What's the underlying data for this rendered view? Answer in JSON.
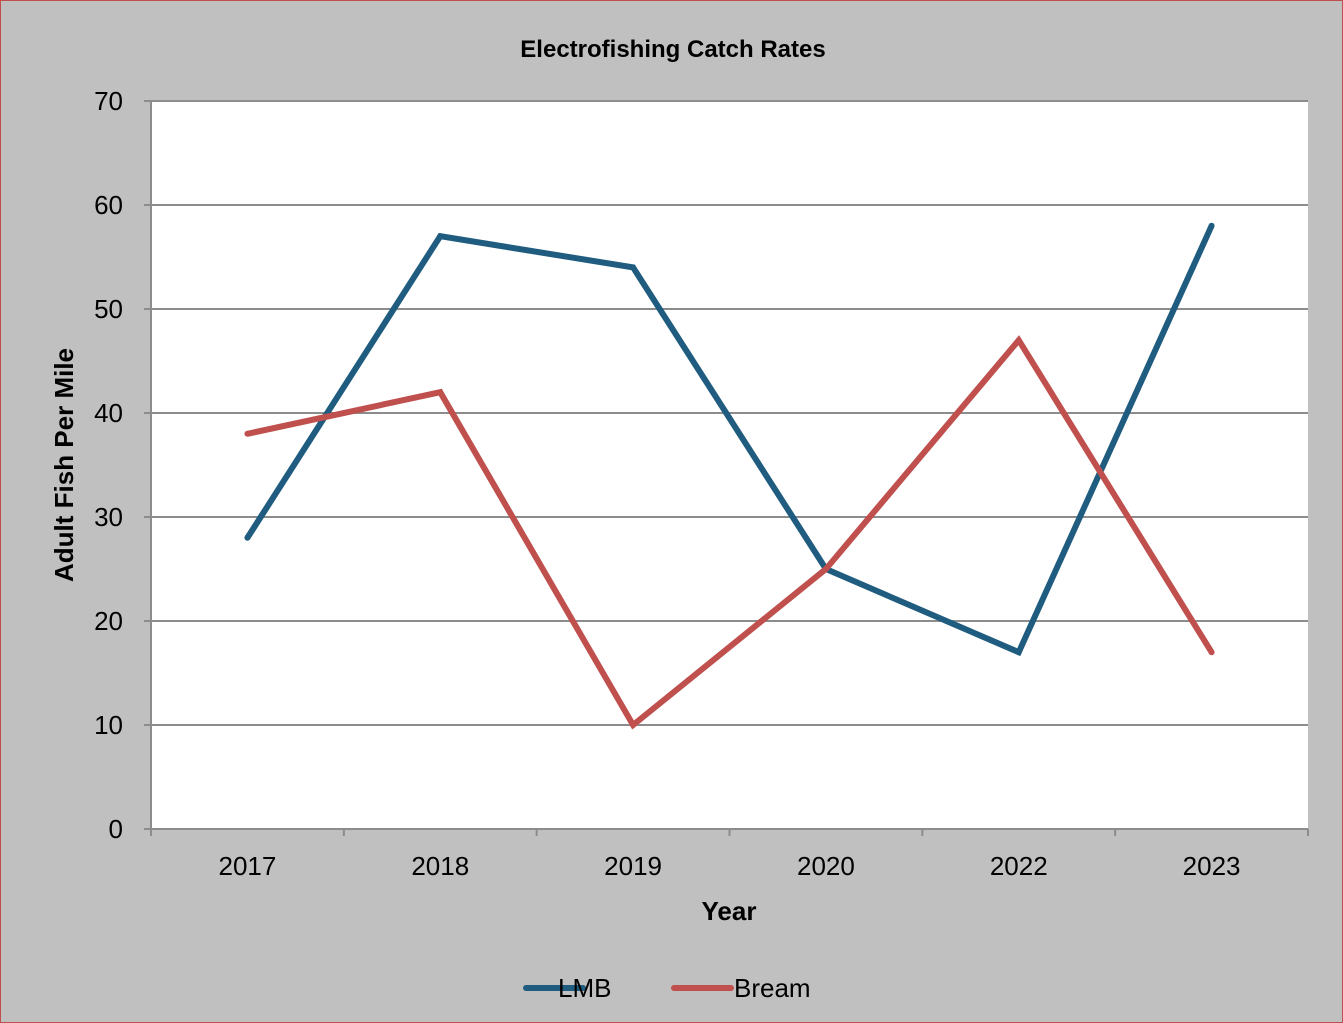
{
  "chart_data": {
    "type": "line",
    "title": "Electrofishing Catch Rates",
    "xlabel": "Year",
    "ylabel": "Adult Fish Per Mile",
    "categories": [
      "2017",
      "2018",
      "2019",
      "2020",
      "2022",
      "2023"
    ],
    "ylim": [
      0,
      70
    ],
    "yticks": [
      0,
      10,
      20,
      30,
      40,
      50,
      60,
      70
    ],
    "grid": "horizontal",
    "legend_position": "bottom",
    "series": [
      {
        "name": "LMB",
        "color": "#1f5c7f",
        "values": [
          28,
          57,
          54,
          25,
          17,
          58
        ]
      },
      {
        "name": "Bream",
        "color": "#c0504d",
        "values": [
          38,
          42,
          10,
          25,
          47,
          17
        ]
      }
    ]
  }
}
